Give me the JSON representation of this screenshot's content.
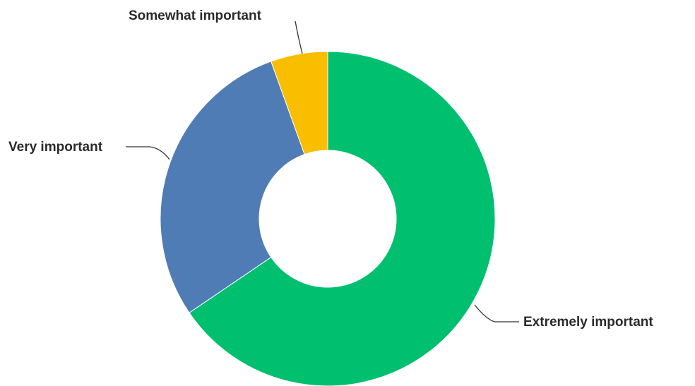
{
  "chart_data": {
    "type": "pie",
    "donut": true,
    "categories": [
      "Extremely important",
      "Very important",
      "Somewhat important"
    ],
    "values": [
      65.5,
      29.0,
      5.5
    ],
    "unit": "percent",
    "colors": [
      "#00bf6f",
      "#507cb6",
      "#f9be00"
    ],
    "title": "",
    "legend": "none"
  }
}
